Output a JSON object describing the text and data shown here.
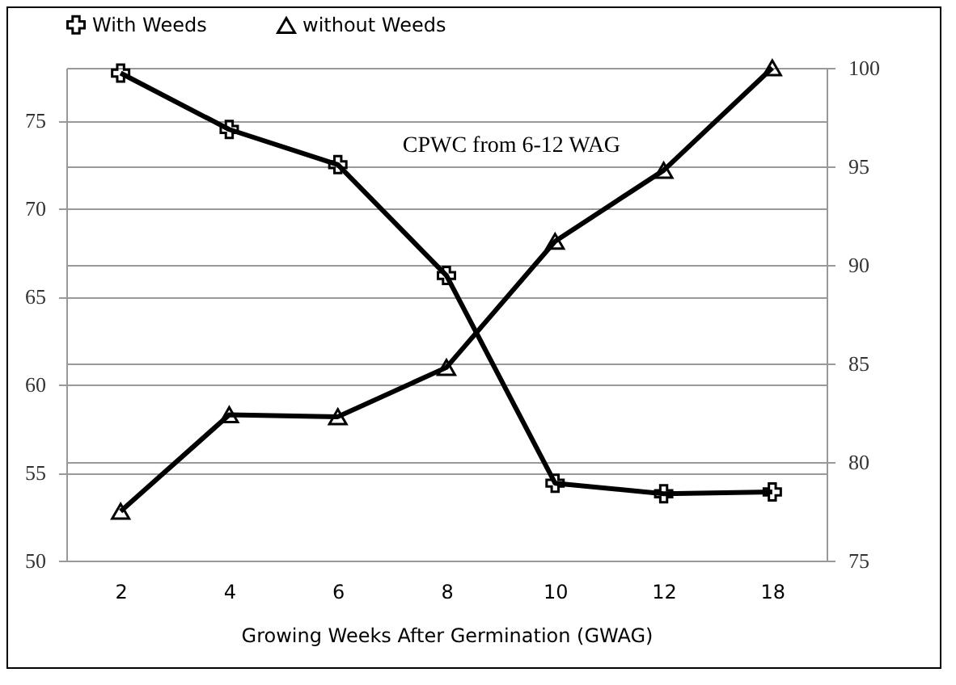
{
  "chart_data": {
    "type": "line",
    "xlabel": "Growing Weeks After Germination (GWAG)",
    "categories": [
      "2",
      "4",
      "6",
      "8",
      "10",
      "12",
      "18"
    ],
    "series": [
      {
        "name": "With Weeds",
        "color": "#000000",
        "marker": "cross",
        "axis": "y",
        "values": [
          77.7,
          74.5,
          72.5,
          66.2,
          54.4,
          53.8,
          53.9
        ]
      },
      {
        "name": "without Weeds",
        "color": "#000000",
        "marker": "triangle",
        "axis": "y2",
        "values": [
          77.5,
          82.4,
          82.3,
          84.8,
          91.2,
          94.8,
          100
        ]
      }
    ],
    "ylim": [
      50,
      78
    ],
    "yticks": [
      50,
      55,
      60,
      65,
      70,
      75
    ],
    "y2lim": [
      75,
      100
    ],
    "y2ticks": [
      75,
      80,
      85,
      90,
      95,
      100
    ],
    "annotations": [
      {
        "text": "CPWC from 6-12 WAG",
        "x": "6",
        "y": 72.5
      }
    ],
    "grid": true,
    "legend": "top"
  }
}
